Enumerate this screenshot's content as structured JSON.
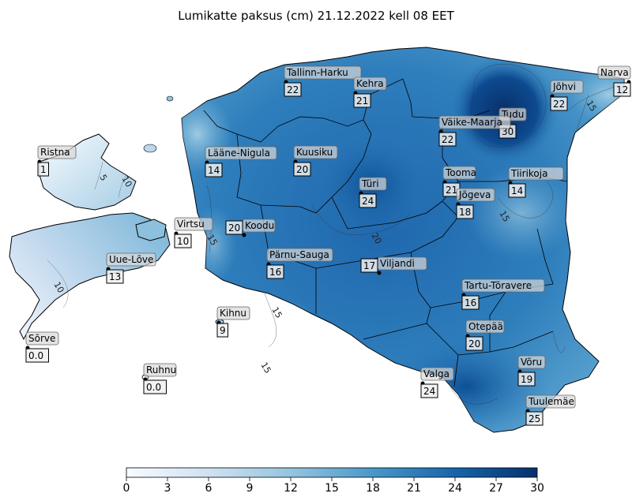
{
  "title": "Lumikatte paksus (cm) 21.12.2022 kell 08 EET",
  "colors": {
    "low": "#f7fbff",
    "mid": "#6baed6",
    "high": "#08306b",
    "land_mid": "#2e7ebc",
    "land_light": "#92c4de",
    "border": "#000000"
  },
  "colorbar": {
    "min": 0,
    "max": 30,
    "ticks": [
      "0",
      "3",
      "6",
      "9",
      "12",
      "15",
      "18",
      "21",
      "24",
      "27",
      "30"
    ]
  },
  "contour_labels": [
    "5",
    "10",
    "10",
    "15",
    "15",
    "15",
    "15",
    "15",
    "20"
  ],
  "stations": [
    {
      "name": "Tallinn-Harku",
      "value": "22"
    },
    {
      "name": "Kehra",
      "value": "21"
    },
    {
      "name": "Narva",
      "value": "12"
    },
    {
      "name": "Jõhvi",
      "value": "22"
    },
    {
      "name": "Tudu",
      "value": "30"
    },
    {
      "name": "Väike-Maarja",
      "value": "22"
    },
    {
      "name": "Ristna",
      "value": "1"
    },
    {
      "name": "Lääne-Nigula",
      "value": "14"
    },
    {
      "name": "Kuusiku",
      "value": "20"
    },
    {
      "name": "Tooma",
      "value": "21"
    },
    {
      "name": "Tiirikoja",
      "value": "14"
    },
    {
      "name": "Türi",
      "value": "24"
    },
    {
      "name": "Jõgeva",
      "value": "18"
    },
    {
      "name": "Virtsu",
      "value": "10"
    },
    {
      "name": "Koodu",
      "value": "20"
    },
    {
      "name": "Uue-Lõve",
      "value": "13"
    },
    {
      "name": "Pärnu-Sauga",
      "value": "16"
    },
    {
      "name": "Viljandi",
      "value": "17"
    },
    {
      "name": "Tartu-Tõravere",
      "value": "16"
    },
    {
      "name": "Kihnu",
      "value": "9"
    },
    {
      "name": "Sõrve",
      "value": "0.0"
    },
    {
      "name": "Otepää",
      "value": "20"
    },
    {
      "name": "Võru",
      "value": "19"
    },
    {
      "name": "Ruhnu",
      "value": "0.0"
    },
    {
      "name": "Valga",
      "value": "24"
    },
    {
      "name": "Tuulemäe",
      "value": "25"
    }
  ]
}
